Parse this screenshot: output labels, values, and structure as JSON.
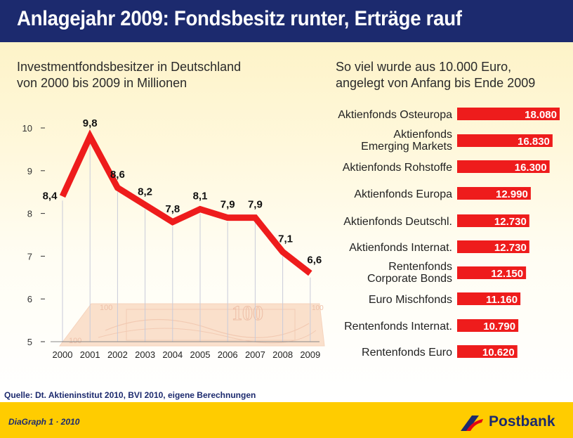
{
  "header": {
    "title": "Anlagejahr 2009: Fondsbesitz runter, Erträge rauf"
  },
  "left": {
    "subtitle_line1": "Investmentfondsbesitzer in Deutschland",
    "subtitle_line2": "von 2000 bis 2009 in Millionen"
  },
  "right": {
    "subtitle_line1": "So viel wurde aus 10.000 Euro,",
    "subtitle_line2": "angelegt von Anfang bis Ende 2009"
  },
  "footer": {
    "source": "Quelle: Dt. Aktieninstitut 2010, BVI 2010, eigene Berechnungen",
    "diagraph": "DiaGraph 1 · 2010",
    "brand": "Postbank"
  },
  "colors": {
    "header_bg": "#1c2a6e",
    "accent_red": "#ee1c1c",
    "footer_yellow": "#ffcc00",
    "brand_blue": "#1c2a6e"
  },
  "chart_data": [
    {
      "type": "line",
      "x": [
        "2000",
        "2001",
        "2002",
        "2003",
        "2004",
        "2005",
        "2006",
        "2007",
        "2008",
        "2009"
      ],
      "values": [
        8.4,
        9.8,
        8.6,
        8.2,
        7.8,
        8.1,
        7.9,
        7.9,
        7.1,
        6.6
      ],
      "value_labels": [
        "8,4",
        "9,8",
        "8,6",
        "8,2",
        "7,8",
        "8,1",
        "7,9",
        "7,9",
        "7,1",
        "6,6"
      ],
      "y_ticks": [
        "5",
        "6",
        "7",
        "8",
        "9",
        "10"
      ],
      "ylim": [
        5,
        10
      ],
      "grid": false
    },
    {
      "type": "bar",
      "orientation": "horizontal",
      "categories": [
        [
          "Aktienfonds Osteuropa"
        ],
        [
          "Aktienfonds",
          "Emerging Markets"
        ],
        [
          "Aktienfonds Rohstoffe"
        ],
        [
          "Aktienfonds Europa"
        ],
        [
          "Aktienfonds Deutschl."
        ],
        [
          "Aktienfonds Internat."
        ],
        [
          "Rentenfonds",
          "Corporate Bonds"
        ],
        [
          "Euro Mischfonds"
        ],
        [
          "Rentenfonds Internat."
        ],
        [
          "Rentenfonds Euro"
        ]
      ],
      "values": [
        18080,
        16830,
        16300,
        12990,
        12730,
        12730,
        12150,
        11160,
        10790,
        10620
      ],
      "value_labels": [
        "18.080",
        "16.830",
        "16.300",
        "12.990",
        "12.730",
        "12.730",
        "12.150",
        "11.160",
        "10.790",
        "10.620"
      ]
    }
  ]
}
